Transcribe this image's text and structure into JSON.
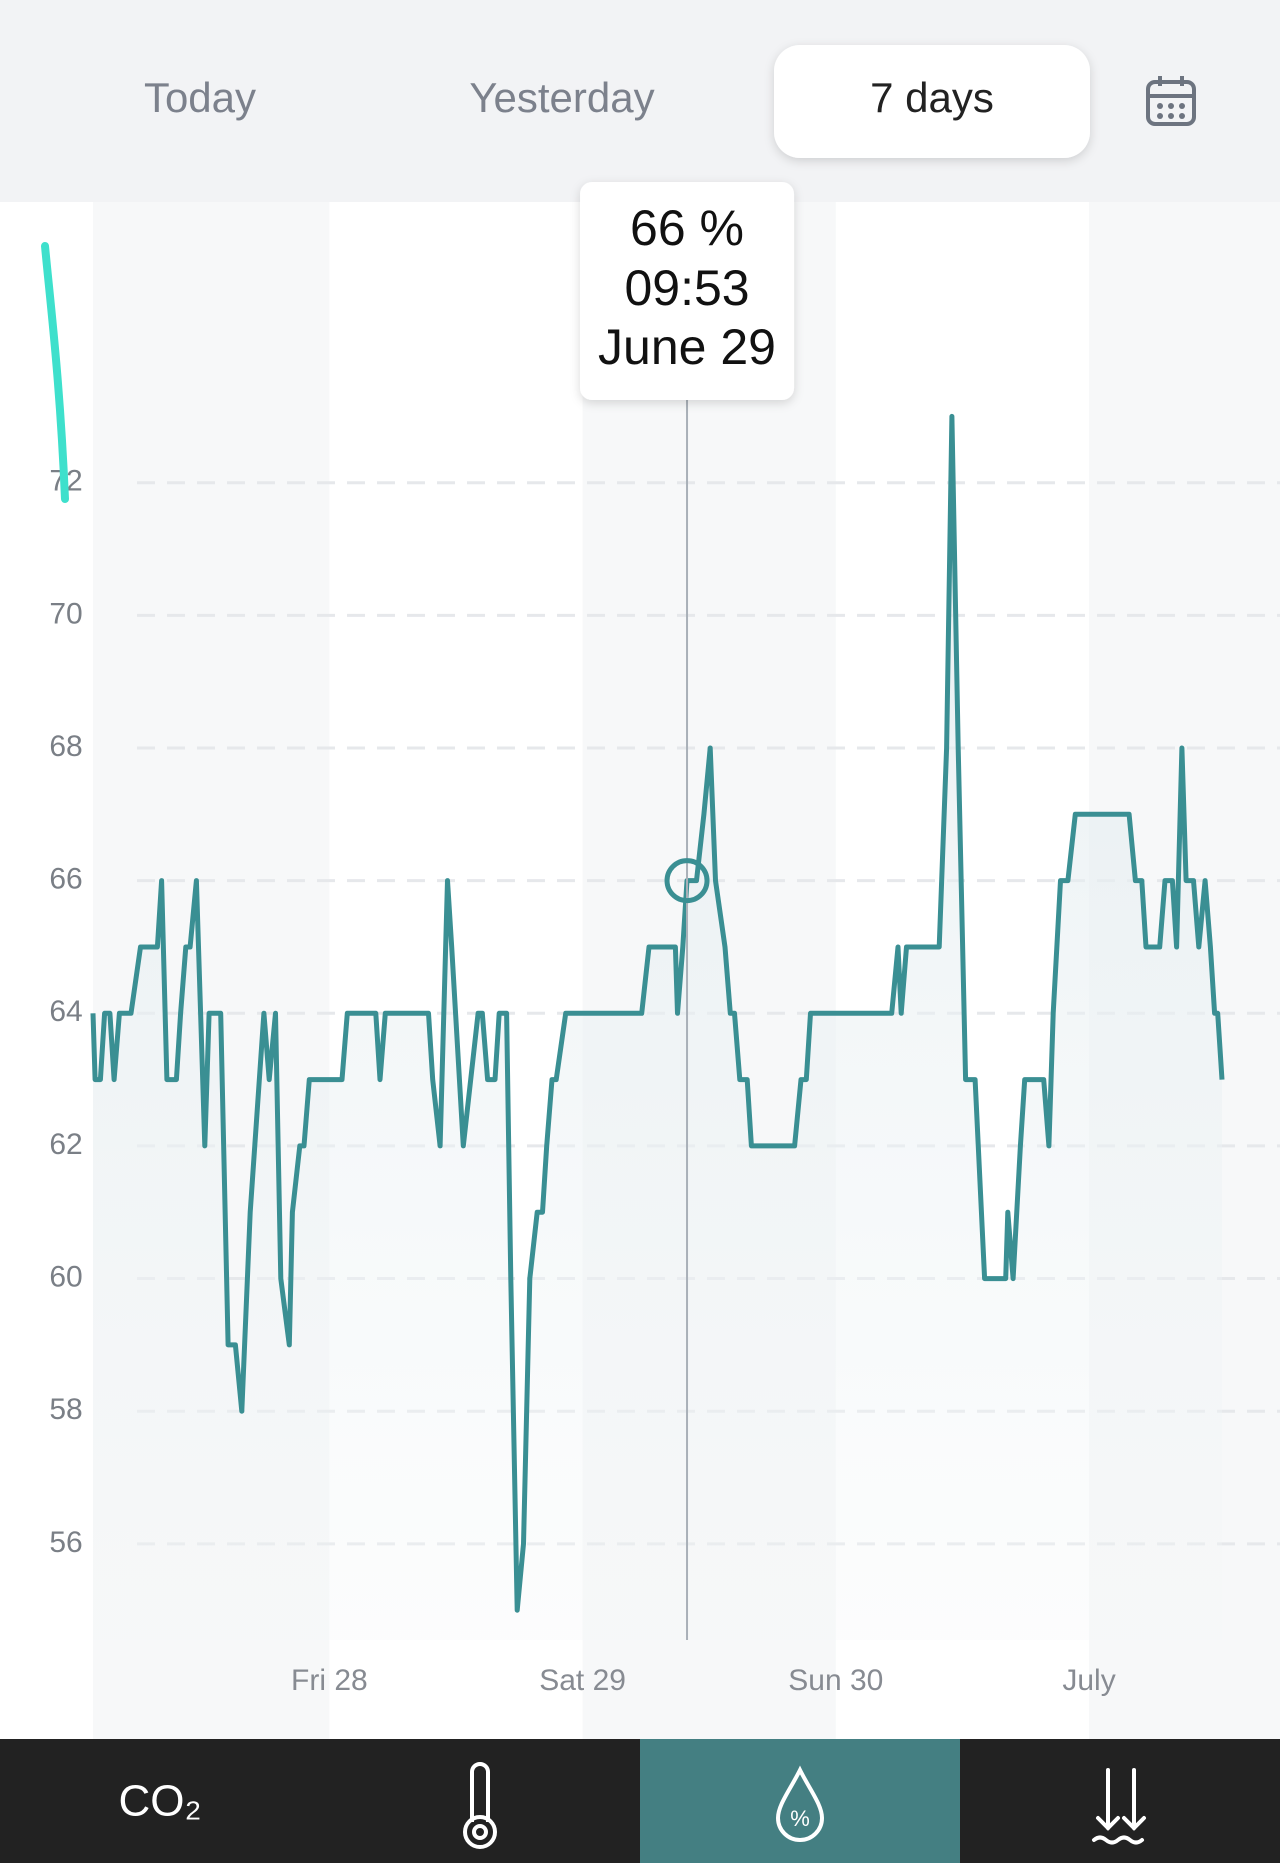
{
  "tabs": {
    "items": [
      "Today",
      "Yesterday",
      "7 days"
    ],
    "active": 2
  },
  "tooltip": {
    "value": "66 %",
    "time": "09:53",
    "date": "June 29"
  },
  "chart_data": {
    "type": "line",
    "x": [
      -22.4,
      -22.2,
      -21.7,
      -21.3,
      -20.8,
      -20.4,
      -19.9,
      -19.5,
      -18.8,
      -17.9,
      -16.8,
      -16.3,
      -15.9,
      -15.4,
      -14.5,
      -14.1,
      -13.6,
      -13.2,
      -12.6,
      -11.8,
      -11.4,
      -10.3,
      -9.6,
      -8.9,
      -8.3,
      -7.5,
      -6.2,
      -5.7,
      -5.1,
      -4.6,
      -3.8,
      -3.5,
      -2.8,
      -2.4,
      -1.9,
      1.2,
      1.7,
      4.4,
      4.8,
      5.3,
      9.4,
      9.8,
      10.5,
      11.2,
      11.6,
      12.7,
      13.4,
      14.1,
      14.5,
      15.0,
      15.7,
      16.1,
      16.8,
      17.2,
      17.8,
      18.4,
      19.0,
      19.7,
      20.2,
      20.6,
      21.1,
      21.5,
      22.4,
      29.6,
      30.3,
      32.8,
      33.0,
      33.5,
      33.9,
      34.8,
      35.5,
      36.1,
      36.6,
      37.5,
      38.0,
      38.4,
      38.9,
      39.6,
      40.0,
      44.1,
      44.7,
      45.2,
      45.6,
      53.3,
      53.9,
      54.2,
      54.7,
      57.8,
      58.5,
      59.0,
      59.6,
      60.3,
      61.2,
      62.1,
      64.1,
      64.3,
      64.8,
      65.5,
      65.9,
      66.4,
      67.7,
      68.2,
      68.6,
      69.3,
      70.0,
      70.7,
      75.8,
      76.4,
      77.0,
      77.4,
      78.1,
      78.7,
      79.2,
      79.9,
      80.3,
      80.8,
      81.2,
      81.9,
      82.4,
      83.0,
      83.5,
      83.9,
      84.2,
      84.6
    ],
    "series": [
      {
        "color": "#3a8f93",
        "values": [
          64,
          63,
          63,
          64,
          64,
          63,
          64,
          64,
          64,
          65,
          65,
          65,
          66,
          63,
          63,
          64,
          65,
          65,
          66,
          62,
          64,
          64,
          59,
          59,
          58,
          61,
          64,
          63,
          64,
          60,
          59,
          61,
          62,
          62,
          63,
          63,
          64,
          64,
          63,
          64,
          64,
          63,
          62,
          66,
          65,
          62,
          63,
          64,
          64,
          63,
          63,
          64,
          64,
          60,
          55,
          56,
          60,
          61,
          61,
          62,
          63,
          63,
          64,
          64,
          65,
          65,
          64,
          65,
          66,
          66,
          67,
          68,
          66,
          65,
          64,
          64,
          63,
          63,
          62,
          62,
          63,
          63,
          64,
          64,
          65,
          64,
          65,
          65,
          68,
          73,
          68,
          63,
          63,
          60,
          60,
          61,
          60,
          62,
          63,
          63,
          63,
          62,
          64,
          66,
          66,
          67,
          67,
          66,
          66,
          65,
          65,
          65,
          66,
          66,
          65,
          68,
          66,
          66,
          65,
          66,
          65,
          64,
          64,
          63
        ]
      }
    ],
    "xlim": [
      -22.4,
      90.1
    ],
    "xticks": [
      {
        "value": 0,
        "label": "Fri 28"
      },
      {
        "value": 24,
        "label": "Sat 29"
      },
      {
        "value": 48,
        "label": "Sun 30"
      },
      {
        "value": 72,
        "label": "July"
      }
    ],
    "ylim": [
      54.55,
      75.69
    ],
    "yticks": [
      56,
      58,
      60,
      62,
      64,
      66,
      68,
      70,
      72
    ],
    "grid": true,
    "highlight": {
      "x": 33.9,
      "y": 66
    }
  },
  "nav": {
    "items": [
      "CO₂"
    ],
    "symbol": "%",
    "active": 2
  }
}
